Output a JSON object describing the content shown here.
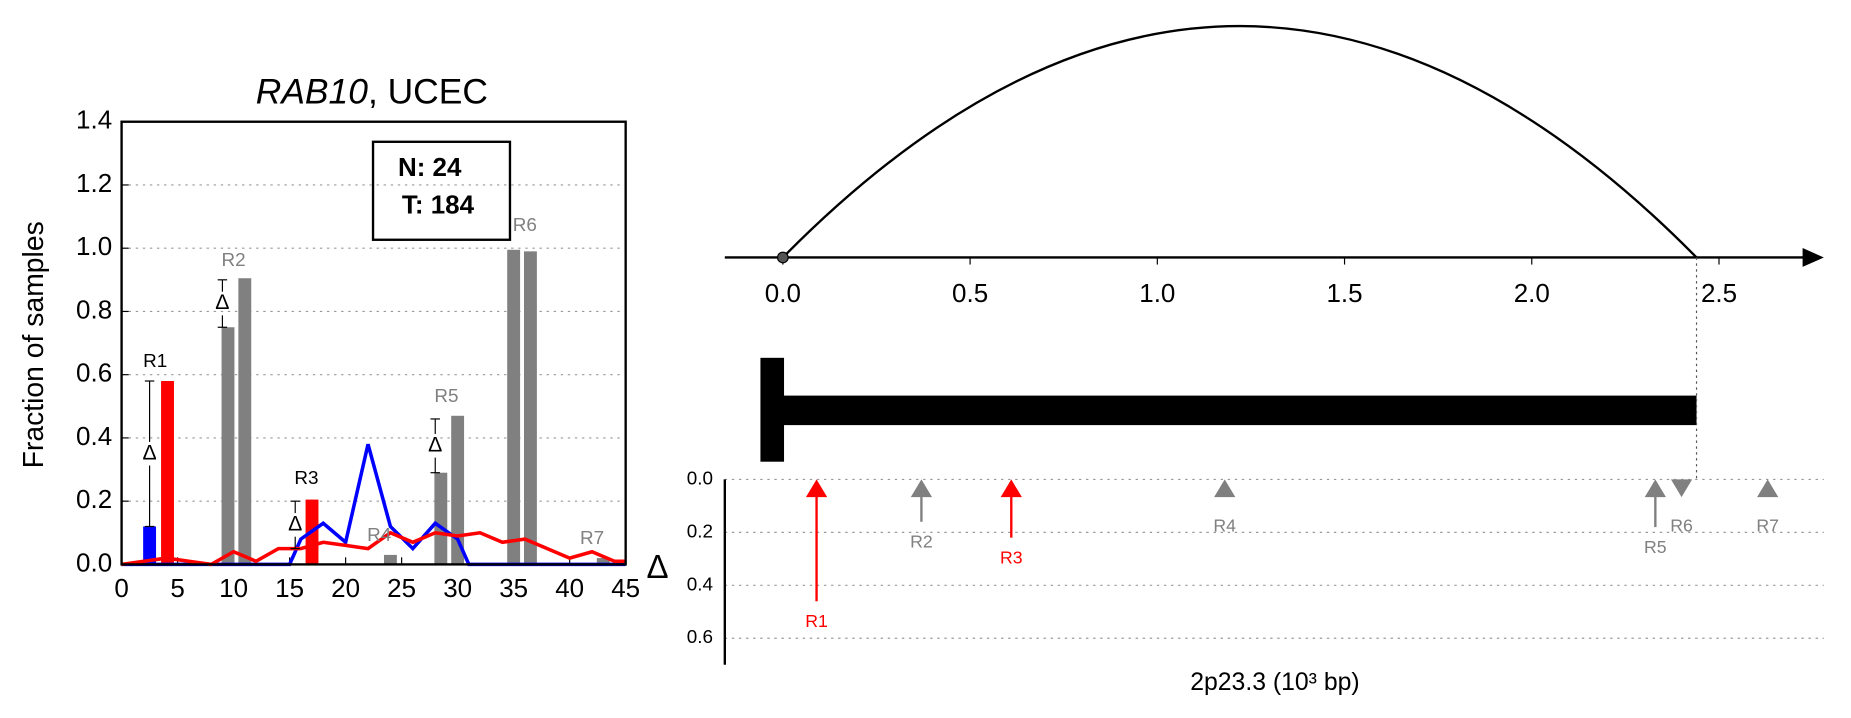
{
  "chart_data": [
    {
      "type": "bar_line",
      "title_gene": "RAB10",
      "title_suffix": ", UCEC",
      "ylabel": "Fraction of samples",
      "annotation": [
        "N: 24",
        "T: 184"
      ],
      "delta_symbol": "Δ",
      "xlim": [
        0,
        45
      ],
      "ylim": [
        0,
        1.4
      ],
      "xticks": [
        0,
        5,
        10,
        15,
        20,
        25,
        30,
        35,
        40,
        45
      ],
      "yticks": [
        {
          "value": 0,
          "label": "0.0"
        },
        {
          "value": 0.2,
          "label": "0.2"
        },
        {
          "value": 0.4,
          "label": "0.4"
        },
        {
          "value": 0.6,
          "label": "0.6"
        },
        {
          "value": 0.8,
          "label": "0.8"
        },
        {
          "value": 1.0,
          "label": "1.0"
        },
        {
          "value": 1.2,
          "label": "1.2"
        },
        {
          "value": 1.4,
          "label": "1.4"
        }
      ],
      "grid": true,
      "bars": [
        {
          "x": 2.5,
          "value": 0.12,
          "color": "#0000ff"
        },
        {
          "x": 4.1,
          "value": 0.58,
          "color": "#ff0000"
        },
        {
          "x": 9.5,
          "value": 0.75,
          "color": "#808080"
        },
        {
          "x": 11,
          "value": 0.905,
          "color": "#808080"
        },
        {
          "x": 17,
          "value": 0.205,
          "color": "#ff0000"
        },
        {
          "x": 24,
          "value": 0.03,
          "color": "#808080"
        },
        {
          "x": 28.5,
          "value": 0.29,
          "color": "#808080"
        },
        {
          "x": 30,
          "value": 0.47,
          "color": "#808080"
        },
        {
          "x": 35,
          "value": 0.995,
          "color": "#808080"
        },
        {
          "x": 36.5,
          "value": 0.99,
          "color": "#808080"
        },
        {
          "x": 43,
          "value": 0.02,
          "color": "#808080"
        }
      ],
      "lines": [
        {
          "color": "#0000ff",
          "x": [
            0,
            14,
            15,
            16,
            18,
            20,
            22,
            24,
            26,
            28,
            30,
            31,
            45
          ],
          "values": [
            0,
            0,
            0,
            0.08,
            0.13,
            0.07,
            0.38,
            0.12,
            0.05,
            0.13,
            0.08,
            0,
            0
          ]
        },
        {
          "color": "#ff0000",
          "x": [
            0,
            2,
            4,
            6,
            8,
            10,
            12,
            14,
            16,
            18,
            20,
            22,
            24,
            26,
            28,
            30,
            32,
            34,
            36,
            38,
            40,
            42,
            44,
            45
          ],
          "values": [
            0,
            0.01,
            0.02,
            0.01,
            0,
            0.04,
            0.01,
            0.05,
            0.05,
            0.07,
            0.06,
            0.05,
            0.1,
            0.07,
            0.1,
            0.09,
            0.1,
            0.07,
            0.08,
            0.05,
            0.02,
            0.04,
            0.01,
            0.01
          ]
        }
      ],
      "regions": [
        {
          "label": "R1",
          "x": 3,
          "y": 0.64,
          "color": "#000000"
        },
        {
          "label": "R2",
          "x": 10,
          "y": 0.96,
          "color": "#808080"
        },
        {
          "label": "R3",
          "x": 16.5,
          "y": 0.27,
          "color": "#000000"
        },
        {
          "label": "R4",
          "x": 23,
          "y": 0.09,
          "color": "#808080"
        },
        {
          "label": "R5",
          "x": 29,
          "y": 0.53,
          "color": "#808080"
        },
        {
          "label": "R6",
          "x": 36,
          "y": 1.07,
          "color": "#808080"
        },
        {
          "label": "R7",
          "x": 42,
          "y": 0.08,
          "color": "#808080"
        }
      ],
      "deltas": [
        {
          "x": 2.5,
          "low": 0.12,
          "high": 0.58
        },
        {
          "x": 9,
          "low": 0.75,
          "high": 0.9
        },
        {
          "x": 15.5,
          "low": 0.05,
          "high": 0.2
        },
        {
          "x": 28,
          "low": 0.29,
          "high": 0.46
        }
      ]
    },
    {
      "type": "locus",
      "xlabel": "2p23.3 (10³ bp)",
      "ylabel": "Δ",
      "xlim": [
        -0.155,
        2.78
      ],
      "ylim": [
        0,
        0.7
      ],
      "xticks": [
        {
          "value": 0,
          "label": "0.0"
        },
        {
          "value": 0.5,
          "label": "0.5"
        },
        {
          "value": 1.0,
          "label": "1.0"
        },
        {
          "value": 1.5,
          "label": "1.5"
        },
        {
          "value": 2.0,
          "label": "2.0"
        },
        {
          "value": 2.5,
          "label": "2.5"
        }
      ],
      "yticks": [
        {
          "value": 0,
          "label": "0.0"
        },
        {
          "value": 0.2,
          "label": "0.2"
        },
        {
          "value": 0.4,
          "label": "0.4"
        },
        {
          "value": 0.6,
          "label": "0.6"
        }
      ],
      "grid": true,
      "arc": {
        "start": 0,
        "end": 2.44
      },
      "gene": {
        "start": 0,
        "end": 2.44
      },
      "regions": [
        {
          "label": "R1",
          "x": 0.09,
          "delta": 0.46,
          "color": "#ff0000",
          "direction": "up"
        },
        {
          "label": "R2",
          "x": 0.37,
          "delta": 0.16,
          "color": "#808080",
          "direction": "up"
        },
        {
          "label": "R3",
          "x": 0.61,
          "delta": 0.22,
          "color": "#ff0000",
          "direction": "up"
        },
        {
          "label": "R4",
          "x": 1.18,
          "delta": 0,
          "color": "#808080",
          "direction": "up"
        },
        {
          "label": "R5",
          "x": 2.33,
          "delta": 0.18,
          "color": "#808080",
          "direction": "up"
        },
        {
          "label": "R6",
          "x": 2.4,
          "delta": 0,
          "color": "#808080",
          "direction": "down"
        },
        {
          "label": "R7",
          "x": 2.63,
          "delta": 0,
          "color": "#808080",
          "direction": "up"
        }
      ]
    }
  ]
}
